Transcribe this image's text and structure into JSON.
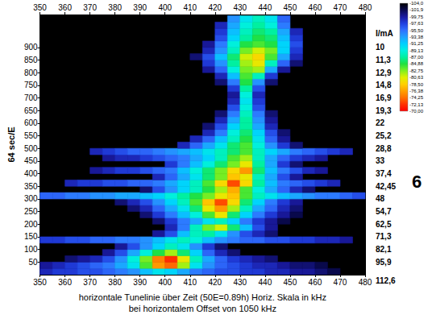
{
  "chart_data": {
    "type": "heatmap",
    "xlabel": [
      "horizontale Tunelinie über Zeit (50E=0.89h) Horiz. Skala in kHz",
      "bei horizontalem Offset von 1050 kHz"
    ],
    "ylabel": "64 sec/E",
    "xlim": [
      350,
      480
    ],
    "xticks": [
      350,
      360,
      370,
      380,
      390,
      400,
      410,
      420,
      430,
      440,
      450,
      460,
      470,
      480
    ],
    "ylim": [
      0,
      1030
    ],
    "yticks": [
      50,
      100,
      150,
      200,
      250,
      300,
      350,
      400,
      450,
      500,
      550,
      600,
      650,
      700,
      750,
      800,
      850,
      900
    ],
    "grid": false,
    "cells": {
      "x_step": 5,
      "y_step": 25,
      "rows": [
        {
          "y": 0,
          "x_start": 350,
          "values": [
            -99,
            -98,
            -98,
            -97,
            -97,
            -96,
            -95,
            -94,
            -92,
            -90,
            -91,
            -93,
            -95,
            -96,
            -97,
            -97,
            -98,
            -98,
            -99,
            -99,
            -100,
            -100,
            -101,
            -102
          ]
        },
        {
          "y": 25,
          "x_start": 350,
          "values": [
            -100,
            -99,
            -98,
            -97,
            -96,
            -95,
            -93,
            -90,
            -84,
            -76,
            -74,
            -82,
            -90,
            -94,
            -96,
            -97,
            -98,
            -99,
            -99,
            -100,
            -101,
            -101,
            -102
          ]
        },
        {
          "y": 50,
          "x_start": 360,
          "values": [
            -101,
            -100,
            -99,
            -97,
            -94,
            -89,
            -83,
            -75,
            -72,
            -80,
            -88,
            -93,
            -96,
            -98,
            -99,
            -100,
            -101
          ]
        },
        {
          "y": 75,
          "x_start": 375,
          "values": [
            -100,
            -97,
            -93,
            -89,
            -85,
            -82,
            -86,
            -91,
            -96,
            -99,
            -101
          ]
        },
        {
          "y": 100,
          "x_start": 380,
          "values": [
            -100,
            -97,
            -94,
            -91,
            -88,
            -90,
            -94,
            -98,
            -101
          ]
        },
        {
          "y": 125,
          "x_start": 350,
          "values": [
            -98,
            -98,
            -97,
            -97,
            -96,
            -96,
            -95,
            -95,
            -94,
            -92,
            -90,
            -88,
            -89,
            -92,
            -94,
            -95,
            -96,
            -96,
            -97,
            -97,
            -98,
            -98,
            -99,
            -99,
            -100
          ]
        },
        {
          "y": 150,
          "x_start": 395,
          "values": [
            -100,
            -97,
            -92,
            -88,
            -87,
            -90,
            -94,
            -97,
            -99,
            -101
          ]
        },
        {
          "y": 175,
          "x_start": 400,
          "values": [
            -99,
            -95,
            -88,
            -83,
            -81,
            -86,
            -92,
            -97,
            -100
          ]
        },
        {
          "y": 200,
          "x_start": 395,
          "values": [
            -101,
            -98,
            -95,
            -93,
            -90,
            -88,
            -91,
            -95,
            -98,
            -100,
            -102
          ]
        },
        {
          "y": 225,
          "x_start": 390,
          "values": [
            -101,
            -98,
            -95,
            -92,
            -89,
            -84,
            -80,
            -86,
            -91,
            -95,
            -98,
            -100,
            -102
          ]
        },
        {
          "y": 250,
          "x_start": 385,
          "values": [
            -101,
            -99,
            -96,
            -93,
            -90,
            -86,
            -80,
            -76,
            -82,
            -88,
            -93,
            -96,
            -99,
            -101
          ]
        },
        {
          "y": 275,
          "x_start": 380,
          "values": [
            -101,
            -99,
            -97,
            -94,
            -91,
            -88,
            -84,
            -78,
            -73,
            -79,
            -86,
            -91,
            -95,
            -98,
            -100
          ]
        },
        {
          "y": 300,
          "x_start": 350,
          "values": [
            -96,
            -96,
            -95,
            -95,
            -94,
            -94,
            -93,
            -93,
            -92,
            -91,
            -89,
            -87,
            -85,
            -83,
            -80,
            -78,
            -84,
            -88,
            -90,
            -92,
            -93,
            -94,
            -95,
            -95,
            -96,
            -97
          ]
        },
        {
          "y": 325,
          "x_start": 390,
          "values": [
            -101,
            -97,
            -94,
            -91,
            -88,
            -85,
            -82,
            -77,
            -84,
            -89,
            -93,
            -96,
            -99,
            -101
          ]
        },
        {
          "y": 350,
          "x_start": 360,
          "values": [
            -99,
            -98,
            -98,
            -97,
            -97,
            -96,
            -96,
            -95,
            -93,
            -91,
            -88,
            -84,
            -79,
            -73,
            -79,
            -87,
            -92,
            -95,
            -96,
            -97,
            -98,
            -99
          ]
        },
        {
          "y": 375,
          "x_start": 395,
          "values": [
            -99,
            -96,
            -93,
            -90,
            -86,
            -83,
            -78,
            -80,
            -88,
            -93,
            -97,
            -100
          ]
        },
        {
          "y": 400,
          "x_start": 370,
          "values": [
            -100,
            -99,
            -98,
            -98,
            -97,
            -96,
            -95,
            -92,
            -89,
            -86,
            -83,
            -79,
            -76,
            -86,
            -92,
            -95,
            -97,
            -99,
            -100
          ]
        },
        {
          "y": 425,
          "x_start": 400,
          "values": [
            -98,
            -95,
            -92,
            -89,
            -86,
            -83,
            -80,
            -87,
            -93,
            -98,
            -101
          ]
        },
        {
          "y": 450,
          "x_start": 375,
          "values": [
            -100,
            -99,
            -99,
            -98,
            -97,
            -96,
            -95,
            -93,
            -91,
            -88,
            -84,
            -82,
            -88,
            -93,
            -96,
            -98,
            -99,
            -100
          ]
        },
        {
          "y": 475,
          "x_start": 370,
          "values": [
            -99,
            -98,
            -97,
            -96,
            -96,
            -95,
            -94,
            -93,
            -92,
            -90,
            -88,
            -86,
            -84,
            -88,
            -91,
            -93,
            -95,
            -96,
            -97,
            -98,
            -99
          ]
        },
        {
          "y": 500,
          "x_start": 405,
          "values": [
            -99,
            -96,
            -93,
            -90,
            -86,
            -84,
            -89,
            -94,
            -98,
            -101
          ]
        },
        {
          "y": 525,
          "x_start": 410,
          "values": [
            -99,
            -96,
            -92,
            -88,
            -85,
            -90,
            -96,
            -100
          ]
        },
        {
          "y": 550,
          "x_start": 415,
          "values": [
            -99,
            -95,
            -89,
            -86,
            -91,
            -97,
            -101
          ]
        },
        {
          "y": 575,
          "x_start": 415,
          "values": [
            -101,
            -97,
            -91,
            -87,
            -93,
            -99
          ]
        },
        {
          "y": 600,
          "x_start": 420,
          "values": [
            -99,
            -93,
            -87,
            -94,
            -100
          ]
        },
        {
          "y": 625,
          "x_start": 420,
          "values": [
            -101,
            -95,
            -88,
            -95,
            -101
          ]
        },
        {
          "y": 650,
          "x_start": 425,
          "values": [
            -97,
            -89,
            -97
          ]
        },
        {
          "y": 675,
          "x_start": 425,
          "values": [
            -99,
            -90,
            -98
          ]
        },
        {
          "y": 700,
          "x_start": 425,
          "values": [
            -100,
            -89,
            -99
          ]
        },
        {
          "y": 725,
          "x_start": 425,
          "values": [
            -98,
            -87,
            -97
          ]
        },
        {
          "y": 750,
          "x_start": 420,
          "values": [
            -101,
            -95,
            -85,
            -94,
            -101
          ]
        },
        {
          "y": 775,
          "x_start": 420,
          "values": [
            -99,
            -92,
            -84,
            -88,
            -98
          ]
        },
        {
          "y": 800,
          "x_start": 415,
          "values": [
            -100,
            -96,
            -89,
            -83,
            -82,
            -93,
            -100
          ]
        },
        {
          "y": 825,
          "x_start": 415,
          "values": [
            -98,
            -94,
            -87,
            -82,
            -80,
            -88,
            -96,
            -101
          ]
        },
        {
          "y": 850,
          "x_start": 410,
          "values": [
            -101,
            -97,
            -92,
            -86,
            -81,
            -79,
            -84,
            -93,
            -99
          ]
        },
        {
          "y": 875,
          "x_start": 415,
          "values": [
            -99,
            -94,
            -88,
            -83,
            -81,
            -83,
            -91,
            -98
          ]
        },
        {
          "y": 900,
          "x_start": 415,
          "values": [
            -100,
            -95,
            -89,
            -85,
            -84,
            -85,
            -91,
            -97
          ]
        },
        {
          "y": 925,
          "x_start": 420,
          "values": [
            -97,
            -91,
            -87,
            -85,
            -86,
            -92,
            -98
          ]
        },
        {
          "y": 950,
          "x_start": 420,
          "values": [
            -98,
            -92,
            -88,
            -86,
            -87,
            -93,
            -99
          ]
        },
        {
          "y": 975,
          "x_start": 420,
          "values": [
            -99,
            -93,
            -89,
            -87,
            -89,
            -95
          ]
        },
        {
          "y": 1000,
          "x_start": 425,
          "values": [
            -94,
            -90,
            -88,
            -90,
            -96
          ]
        }
      ]
    },
    "colorbar": {
      "range": [
        -104,
        -70
      ],
      "ticks": [
        {
          "value": -104,
          "label": "-104,0"
        },
        {
          "value": -101.9,
          "label": "-101,9"
        },
        {
          "value": -99.75,
          "label": "-99,75"
        },
        {
          "value": -97.63,
          "label": "-97,63"
        },
        {
          "value": -95.5,
          "label": "-95,50"
        },
        {
          "value": -93.38,
          "label": "-93,38"
        },
        {
          "value": -91.25,
          "label": "-91,25"
        },
        {
          "value": -89.13,
          "label": "-89,13"
        },
        {
          "value": -87,
          "label": "-87,00"
        },
        {
          "value": -84.88,
          "label": "-84,88"
        },
        {
          "value": -82.75,
          "label": "-82,75"
        },
        {
          "value": -80.63,
          "label": "-80,63"
        },
        {
          "value": -78.5,
          "label": "-78,50"
        },
        {
          "value": -76.38,
          "label": "-76,38"
        },
        {
          "value": -74.25,
          "label": "-74,25"
        },
        {
          "value": -72.13,
          "label": "-72,13"
        },
        {
          "value": -70,
          "label": "-70,00"
        }
      ],
      "colors": [
        "#000000",
        "#0a0a50",
        "#1a1aa0",
        "#2040e0",
        "#3070ff",
        "#20a0ff",
        "#00d0ff",
        "#00f0e0",
        "#00f0a0",
        "#20e040",
        "#80f020",
        "#e0f000",
        "#ffd000",
        "#ffa000",
        "#ff7000",
        "#ff3000",
        "#ff0000"
      ]
    },
    "current_axis": {
      "title": "I/mA",
      "labels": [
        {
          "y": 900,
          "label": "10"
        },
        {
          "y": 850,
          "label": "11,3"
        },
        {
          "y": 800,
          "label": "12,9"
        },
        {
          "y": 750,
          "label": "14,8"
        },
        {
          "y": 700,
          "label": "16,9"
        },
        {
          "y": 650,
          "label": "19,3"
        },
        {
          "y": 600,
          "label": "22"
        },
        {
          "y": 550,
          "label": "25,2"
        },
        {
          "y": 500,
          "label": "28,8"
        },
        {
          "y": 450,
          "label": "33"
        },
        {
          "y": 400,
          "label": "37,4"
        },
        {
          "y": 350,
          "label": "42,45"
        },
        {
          "y": 300,
          "label": "48"
        },
        {
          "y": 250,
          "label": "54,7"
        },
        {
          "y": 200,
          "label": "62,5"
        },
        {
          "y": 150,
          "label": "71,3"
        },
        {
          "y": 100,
          "label": "82,1"
        },
        {
          "y": 50,
          "label": "95,9"
        },
        {
          "y": -25,
          "label": "112,6"
        }
      ]
    },
    "annotations": [
      "6"
    ]
  }
}
